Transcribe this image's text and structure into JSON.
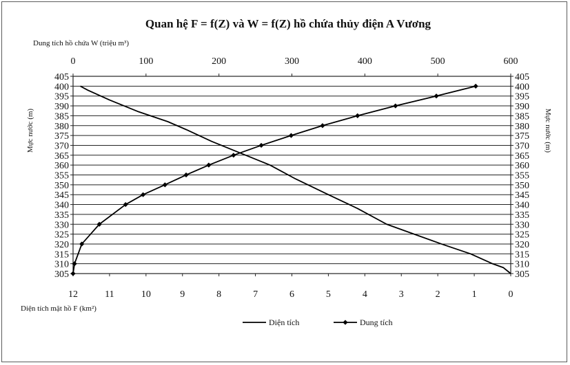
{
  "chart_data": {
    "type": "line",
    "title": "Quan hệ F = f(Z) và W = f(Z) hồ chứa thủy điện A Vương",
    "top_axis_label": "Dung tích hồ chứa W (triệu m³)",
    "bottom_axis_label": "Diện tích mặt hồ F (km²)",
    "left_axis_label": "Mực nước (m)",
    "right_axis_label": "Mực nước (m)",
    "y_range": [
      305,
      405
    ],
    "y_ticks": [
      "405",
      "400",
      "395",
      "390",
      "385",
      "380",
      "375",
      "370",
      "365",
      "360",
      "355",
      "350",
      "345",
      "340",
      "335",
      "330",
      "325",
      "320",
      "315",
      "310",
      "305"
    ],
    "top_axis_range": [
      0,
      600
    ],
    "top_ticks": [
      "0",
      "100",
      "200",
      "300",
      "400",
      "500",
      "600"
    ],
    "bottom_axis_range": [
      12,
      0
    ],
    "bottom_ticks": [
      "12",
      "11",
      "10",
      "9",
      "8",
      "7",
      "6",
      "5",
      "4",
      "3",
      "2",
      "1",
      "0"
    ],
    "grid": true,
    "legend_position": "bottom",
    "series": [
      {
        "name": "Diện tích",
        "axis": "bottom",
        "marker": "none",
        "color": "#000000",
        "points": [
          {
            "x": 0.0,
            "y": 305
          },
          {
            "x": 0.2,
            "y": 308
          },
          {
            "x": 0.5,
            "y": 310
          },
          {
            "x": 1.1,
            "y": 315
          },
          {
            "x": 1.9,
            "y": 320
          },
          {
            "x": 2.8,
            "y": 326
          },
          {
            "x": 3.4,
            "y": 330
          },
          {
            "x": 4.2,
            "y": 338
          },
          {
            "x": 5.0,
            "y": 345
          },
          {
            "x": 5.9,
            "y": 353
          },
          {
            "x": 6.6,
            "y": 360
          },
          {
            "x": 7.4,
            "y": 366
          },
          {
            "x": 8.2,
            "y": 372
          },
          {
            "x": 8.9,
            "y": 378
          },
          {
            "x": 9.4,
            "y": 382
          },
          {
            "x": 10.2,
            "y": 387
          },
          {
            "x": 11.0,
            "y": 393
          },
          {
            "x": 11.6,
            "y": 398
          },
          {
            "x": 11.8,
            "y": 400
          }
        ]
      },
      {
        "name": "Dung tích",
        "axis": "top",
        "marker": "diamond",
        "color": "#000000",
        "points": [
          {
            "x": 0,
            "y": 305
          },
          {
            "x": 2,
            "y": 310
          },
          {
            "x": 12,
            "y": 320
          },
          {
            "x": 36,
            "y": 330
          },
          {
            "x": 72,
            "y": 340
          },
          {
            "x": 96,
            "y": 345
          },
          {
            "x": 126,
            "y": 350
          },
          {
            "x": 155,
            "y": 355
          },
          {
            "x": 186,
            "y": 360
          },
          {
            "x": 220,
            "y": 365
          },
          {
            "x": 258,
            "y": 370
          },
          {
            "x": 299,
            "y": 375
          },
          {
            "x": 342,
            "y": 380
          },
          {
            "x": 390,
            "y": 385
          },
          {
            "x": 442,
            "y": 390
          },
          {
            "x": 498,
            "y": 395
          },
          {
            "x": 552,
            "y": 400
          }
        ]
      }
    ]
  }
}
